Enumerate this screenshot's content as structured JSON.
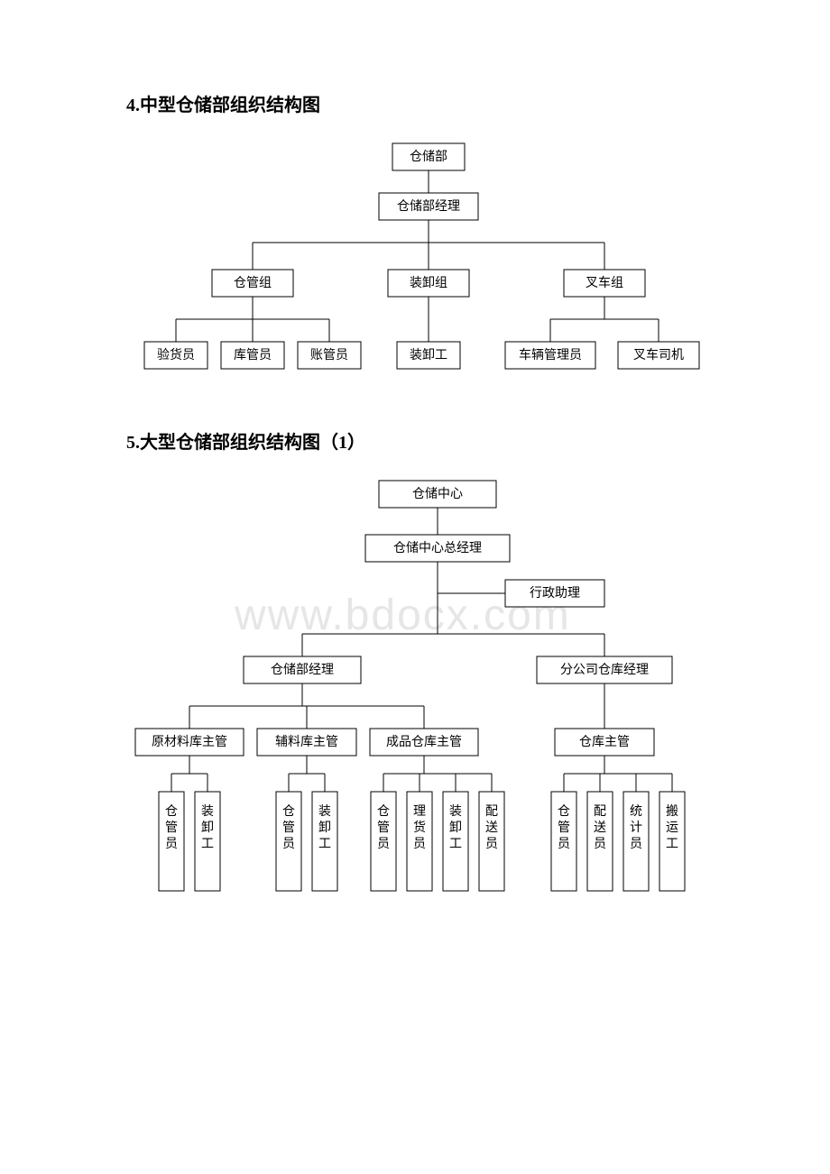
{
  "section4": {
    "title_prefix": "4.",
    "title": "中型仓储部组织结构图",
    "chart": {
      "type": "tree",
      "background_color": "#ffffff",
      "node_border": "#000000",
      "node_fill": "#ffffff",
      "font_size": 14,
      "nodes": {
        "root": {
          "label": "仓储部"
        },
        "mgr": {
          "label": "仓储部经理"
        },
        "g1": {
          "label": "仓管组"
        },
        "g2": {
          "label": "装卸组"
        },
        "g3": {
          "label": "叉车组"
        },
        "l1": {
          "label": "验货员"
        },
        "l2": {
          "label": "库管员"
        },
        "l3": {
          "label": "账管员"
        },
        "l4": {
          "label": "装卸工"
        },
        "l5": {
          "label": "车辆管理员"
        },
        "l6": {
          "label": "叉车司机"
        }
      }
    }
  },
  "section5": {
    "title_prefix": "5.",
    "title": "大型仓储部组织结构图（1）",
    "watermark": "www.bdocx.com",
    "chart": {
      "type": "tree",
      "background_color": "#ffffff",
      "node_border": "#000000",
      "node_fill": "#ffffff",
      "font_size": 14,
      "nodes": {
        "root": {
          "label": "仓储中心"
        },
        "gm": {
          "label": "仓储中心总经理"
        },
        "asst": {
          "label": "行政助理"
        },
        "m1": {
          "label": "仓储部经理"
        },
        "m2": {
          "label": "分公司仓库经理"
        },
        "s1": {
          "label": "原材料库主管"
        },
        "s2": {
          "label": "辅料库主管"
        },
        "s3": {
          "label": "成品仓库主管"
        },
        "s4": {
          "label": "仓库主管"
        },
        "w1": {
          "label": "仓管员"
        },
        "w2": {
          "label": "装卸工"
        },
        "w3": {
          "label": "仓管员"
        },
        "w4": {
          "label": "装卸工"
        },
        "w5": {
          "label": "仓管员"
        },
        "w6": {
          "label": "理货员"
        },
        "w7": {
          "label": "装卸工"
        },
        "w8": {
          "label": "配送员"
        },
        "w9": {
          "label": "仓管员"
        },
        "w10": {
          "label": "配送员"
        },
        "w11": {
          "label": "统计员"
        },
        "w12": {
          "label": "搬运工"
        }
      }
    }
  }
}
